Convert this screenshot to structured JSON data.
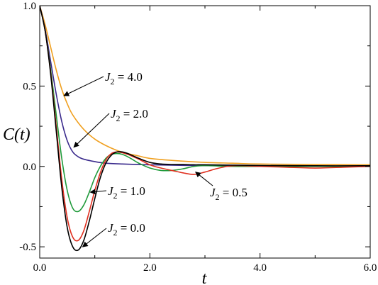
{
  "chart_data": {
    "type": "line",
    "xlabel": "t",
    "ylabel": "C(t)",
    "xlim": [
      0,
      6
    ],
    "ylim": [
      -0.57,
      1.0
    ],
    "xticks": [
      {
        "v": 0,
        "label": "0.0"
      },
      {
        "v": 2,
        "label": "2.0"
      },
      {
        "v": 4,
        "label": "4.0"
      },
      {
        "v": 6,
        "label": "6.0"
      }
    ],
    "yticks": [
      {
        "v": -0.5,
        "label": "-0.5"
      },
      {
        "v": 0,
        "label": "0.0"
      },
      {
        "v": 0.5,
        "label": "0.5"
      },
      {
        "v": 1,
        "label": "1.0"
      }
    ],
    "grid": false,
    "series": [
      {
        "name": "J2 = 4.0",
        "color": "#f0a020",
        "x": [
          0,
          0.1,
          0.2,
          0.3,
          0.4,
          0.5,
          0.6,
          0.8,
          1.0,
          1.2,
          1.4,
          1.6,
          1.8,
          2.0,
          2.5,
          3.0,
          3.5,
          4.0,
          5.0,
          6.0
        ],
        "y": [
          1.0,
          0.88,
          0.74,
          0.6,
          0.48,
          0.39,
          0.32,
          0.23,
          0.17,
          0.13,
          0.1,
          0.08,
          0.065,
          0.05,
          0.035,
          0.025,
          0.02,
          0.015,
          0.012,
          0.01
        ]
      },
      {
        "name": "J2 = 2.0",
        "color": "#3a2a8c",
        "x": [
          0,
          0.1,
          0.2,
          0.3,
          0.4,
          0.5,
          0.6,
          0.7,
          0.8,
          1.0,
          1.2,
          1.5,
          2.0,
          3.0,
          4.0,
          6.0
        ],
        "y": [
          1.0,
          0.85,
          0.65,
          0.45,
          0.28,
          0.16,
          0.09,
          0.06,
          0.045,
          0.03,
          0.02,
          0.015,
          0.01,
          0.005,
          0.003,
          0.0
        ]
      },
      {
        "name": "J2 = 1.0",
        "color": "#1f9a3a",
        "x": [
          0,
          0.1,
          0.2,
          0.3,
          0.4,
          0.5,
          0.6,
          0.7,
          0.8,
          0.9,
          1.0,
          1.1,
          1.2,
          1.3,
          1.4,
          1.5,
          1.6,
          1.7,
          1.8,
          2.0,
          2.2,
          2.4,
          2.6,
          2.8,
          3.0,
          3.5,
          4.0,
          5.0,
          6.0
        ],
        "y": [
          1.0,
          0.84,
          0.6,
          0.32,
          0.05,
          -0.15,
          -0.26,
          -0.28,
          -0.24,
          -0.16,
          -0.07,
          0.0,
          0.05,
          0.075,
          0.08,
          0.075,
          0.06,
          0.04,
          0.02,
          -0.01,
          -0.025,
          -0.025,
          -0.015,
          0.0,
          0.005,
          0.0,
          0.0,
          0.0,
          0.0
        ]
      },
      {
        "name": "J2 = 0.5",
        "color": "#e03020",
        "x": [
          0,
          0.1,
          0.2,
          0.3,
          0.4,
          0.5,
          0.6,
          0.7,
          0.8,
          0.9,
          1.0,
          1.1,
          1.2,
          1.3,
          1.4,
          1.5,
          1.6,
          1.7,
          1.8,
          2.0,
          2.2,
          2.4,
          2.6,
          2.8,
          3.0,
          3.2,
          3.4,
          3.6,
          4.0,
          4.5,
          5.0,
          5.5,
          6.0
        ],
        "y": [
          1.0,
          0.84,
          0.58,
          0.25,
          -0.08,
          -0.32,
          -0.44,
          -0.46,
          -0.4,
          -0.28,
          -0.15,
          -0.04,
          0.04,
          0.08,
          0.09,
          0.085,
          0.075,
          0.06,
          0.045,
          0.01,
          -0.01,
          -0.025,
          -0.04,
          -0.05,
          -0.035,
          -0.015,
          0.0,
          0.005,
          0.0,
          -0.005,
          -0.01,
          -0.005,
          0.0
        ]
      },
      {
        "name": "J2 = 0.0",
        "color": "#000000",
        "x": [
          0,
          0.1,
          0.2,
          0.3,
          0.4,
          0.5,
          0.6,
          0.7,
          0.8,
          0.9,
          1.0,
          1.1,
          1.2,
          1.3,
          1.4,
          1.5,
          1.6,
          1.7,
          1.8,
          2.0,
          2.2,
          2.4,
          2.6,
          2.8,
          3.0,
          3.5,
          4.0,
          5.0,
          6.0
        ],
        "y": [
          1.0,
          0.84,
          0.57,
          0.22,
          -0.13,
          -0.38,
          -0.5,
          -0.52,
          -0.46,
          -0.34,
          -0.2,
          -0.07,
          0.02,
          0.07,
          0.09,
          0.09,
          0.08,
          0.065,
          0.05,
          0.025,
          0.015,
          0.012,
          0.012,
          0.01,
          0.01,
          0.008,
          0.006,
          0.004,
          0.004
        ]
      }
    ],
    "annotations": [
      {
        "series": 0,
        "sub": "2",
        "value": "4.0",
        "at": [
          0.44,
          0.44
        ]
      },
      {
        "series": 1,
        "sub": "2",
        "value": "2.0",
        "at": [
          0.62,
          0.12
        ]
      },
      {
        "series": 2,
        "sub": "2",
        "value": "1.0",
        "at": [
          0.92,
          -0.16
        ]
      },
      {
        "series": 3,
        "sub": "2",
        "value": "0.5",
        "at": [
          2.83,
          -0.035
        ]
      },
      {
        "series": 4,
        "sub": "2",
        "value": "0.0",
        "at": [
          0.78,
          -0.5
        ]
      }
    ],
    "annotation_prefix": "J",
    "annotation_eq": " = "
  }
}
